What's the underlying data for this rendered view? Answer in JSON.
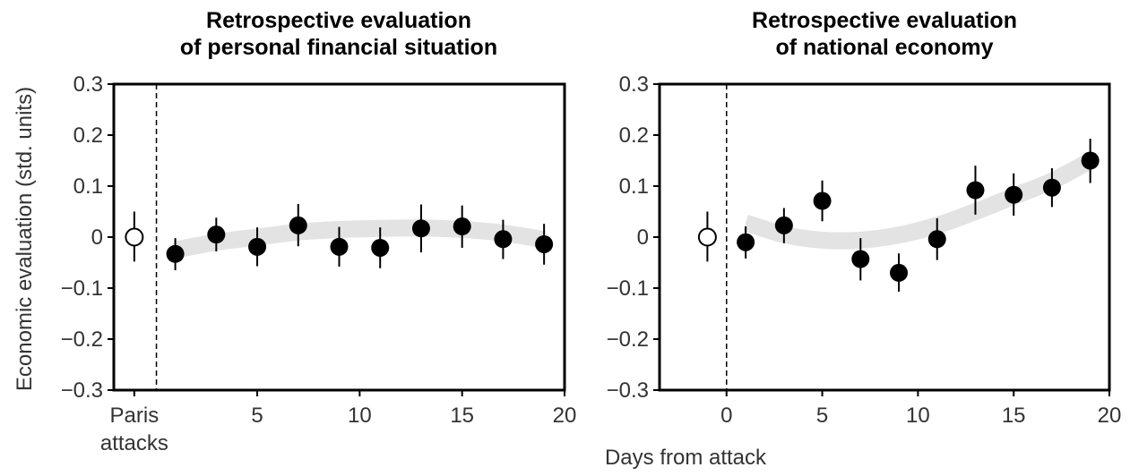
{
  "figure": {
    "ylabel": "Economic evaluation (std. units)",
    "xlabel": "Days from attack"
  },
  "chart_data": [
    {
      "type": "scatter",
      "title": [
        "Retrospective evaluation",
        "of personal financial situation"
      ],
      "xlabel": "Days from attack",
      "ylabel": "Economic evaluation (std. units)",
      "xlim": [
        -2.0,
        20.0
      ],
      "ylim": [
        -0.3,
        0.3
      ],
      "yticks": [
        {
          "value": 0.3,
          "label": "0.3"
        },
        {
          "value": 0.2,
          "label": "0.2"
        },
        {
          "value": 0.1,
          "label": "0.1"
        },
        {
          "value": 0,
          "label": "0"
        },
        {
          "value": -0.1,
          "label": "−0.1"
        },
        {
          "value": -0.2,
          "label": "−0.2"
        },
        {
          "value": -0.3,
          "label": "−0.3"
        }
      ],
      "xticks": [
        {
          "value": -1,
          "label": "Paris",
          "label2": "attacks"
        },
        {
          "value": 5,
          "label": "5"
        },
        {
          "value": 10,
          "label": "10"
        },
        {
          "value": 15,
          "label": "15"
        },
        {
          "value": 20,
          "label": "20"
        }
      ],
      "event_line_x": 0.08,
      "grid": false,
      "baseline": {
        "x": -1,
        "y": 0.0,
        "low": -0.048,
        "high": 0.05
      },
      "points": [
        {
          "x": 1,
          "y": -0.033,
          "low": -0.065,
          "high": -0.002
        },
        {
          "x": 3,
          "y": 0.005,
          "low": -0.028,
          "high": 0.038
        },
        {
          "x": 5,
          "y": -0.019,
          "low": -0.057,
          "high": 0.019
        },
        {
          "x": 7,
          "y": 0.023,
          "low": -0.018,
          "high": 0.065
        },
        {
          "x": 9,
          "y": -0.019,
          "low": -0.058,
          "high": 0.02
        },
        {
          "x": 11,
          "y": -0.021,
          "low": -0.061,
          "high": 0.019
        },
        {
          "x": 13,
          "y": 0.017,
          "low": -0.03,
          "high": 0.064
        },
        {
          "x": 15,
          "y": 0.021,
          "low": -0.021,
          "high": 0.062
        },
        {
          "x": 17,
          "y": -0.004,
          "low": -0.043,
          "high": 0.034
        },
        {
          "x": 19,
          "y": -0.014,
          "low": -0.054,
          "high": 0.026
        }
      ],
      "trend": {
        "x": [
          1,
          3,
          5,
          7,
          9,
          11,
          13,
          15,
          17,
          19
        ],
        "y": [
          -0.025,
          -0.01,
          0.0,
          0.01,
          0.015,
          0.017,
          0.018,
          0.015,
          0.008,
          -0.005
        ]
      },
      "colors": {
        "point": "#000000",
        "baseline_fill": "#ffffff",
        "trend": "#e3e3e3"
      }
    },
    {
      "type": "scatter",
      "title": [
        "Retrospective evaluation",
        "of national economy"
      ],
      "xlabel": "Days from attack",
      "ylabel": "",
      "xlim": [
        -3.5,
        20.0
      ],
      "ylim": [
        -0.3,
        0.3
      ],
      "yticks": [
        {
          "value": 0.3,
          "label": "0.3"
        },
        {
          "value": 0.2,
          "label": "0.2"
        },
        {
          "value": 0.1,
          "label": "0.1"
        },
        {
          "value": 0,
          "label": "0"
        },
        {
          "value": -0.1,
          "label": "−0.1"
        },
        {
          "value": -0.2,
          "label": "−0.2"
        },
        {
          "value": -0.3,
          "label": "−0.3"
        }
      ],
      "xticks": [
        {
          "value": 0,
          "label": "0"
        },
        {
          "value": 5,
          "label": "5"
        },
        {
          "value": 10,
          "label": "10"
        },
        {
          "value": 15,
          "label": "15"
        },
        {
          "value": 20,
          "label": "20"
        }
      ],
      "event_line_x": 0,
      "grid": false,
      "baseline": {
        "x": -1,
        "y": 0.0,
        "low": -0.048,
        "high": 0.05
      },
      "points": [
        {
          "x": 1,
          "y": -0.01,
          "low": -0.042,
          "high": 0.021
        },
        {
          "x": 3,
          "y": 0.023,
          "low": -0.012,
          "high": 0.057
        },
        {
          "x": 5,
          "y": 0.071,
          "low": 0.031,
          "high": 0.111
        },
        {
          "x": 7,
          "y": -0.043,
          "low": -0.085,
          "high": -0.002
        },
        {
          "x": 9,
          "y": -0.07,
          "low": -0.107,
          "high": -0.032
        },
        {
          "x": 11,
          "y": -0.004,
          "low": -0.045,
          "high": 0.037
        },
        {
          "x": 13,
          "y": 0.092,
          "low": 0.044,
          "high": 0.14
        },
        {
          "x": 15,
          "y": 0.083,
          "low": 0.042,
          "high": 0.125
        },
        {
          "x": 17,
          "y": 0.097,
          "low": 0.059,
          "high": 0.135
        },
        {
          "x": 19,
          "y": 0.15,
          "low": 0.106,
          "high": 0.193
        }
      ],
      "trend": {
        "x": [
          1,
          3,
          5,
          7,
          9,
          11,
          13,
          15,
          17,
          19
        ],
        "y": [
          0.028,
          0.005,
          -0.006,
          -0.006,
          0.004,
          0.023,
          0.05,
          0.08,
          0.11,
          0.15
        ]
      },
      "colors": {
        "point": "#000000",
        "baseline_fill": "#ffffff",
        "trend": "#e3e3e3"
      }
    }
  ]
}
